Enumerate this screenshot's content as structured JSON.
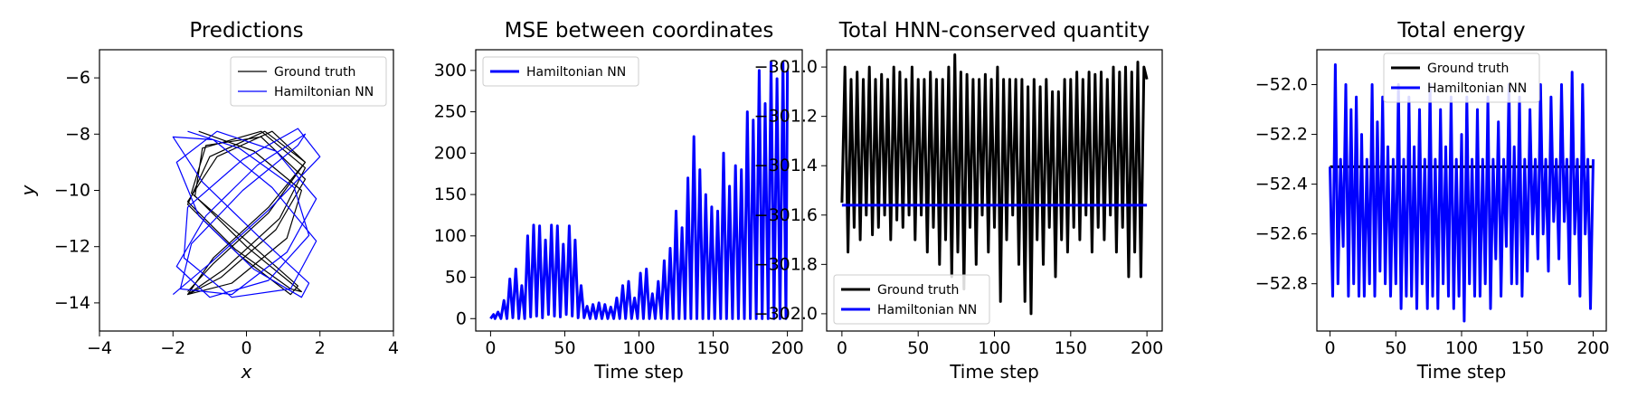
{
  "chart_data": [
    {
      "type": "line",
      "title": "Predictions",
      "xlabel": "x",
      "ylabel": "y",
      "xlim": [
        -4,
        4
      ],
      "ylim": [
        -15,
        -5
      ],
      "xticks": [
        -4,
        -2,
        0,
        2,
        4
      ],
      "yticks": [
        -14,
        -12,
        -10,
        -8,
        -6
      ],
      "xtick_labels": [
        "−4",
        "−2",
        "0",
        "2",
        "4"
      ],
      "ytick_labels": [
        "−14",
        "−12",
        "−10",
        "−8",
        "−6"
      ],
      "grid": false,
      "legend_placement": "top-right",
      "series": [
        {
          "name": "Ground truth",
          "color": "#000000",
          "x": [
            -1.3,
            0.2,
            1.5,
            1.1,
            -0.4,
            -1.6,
            -0.9,
            0.6,
            1.6,
            0.7,
            -0.8,
            -1.6,
            -0.3,
            1.2,
            1.5,
            0.0,
            -1.4,
            -1.2,
            0.4,
            1.6,
            0.9,
            -0.6,
            -1.6,
            -0.7,
            0.8,
            1.6,
            0.4,
            -1.1,
            -1.5,
            0.1,
            1.4,
            1.2,
            -0.2,
            -1.6,
            -1.0,
            0.5,
            1.6,
            0.6,
            -0.9,
            -1.6
          ],
          "y": [
            -7.9,
            -8.6,
            -10.0,
            -11.7,
            -13.3,
            -13.7,
            -12.4,
            -10.6,
            -9.0,
            -7.9,
            -8.8,
            -10.4,
            -12.1,
            -13.5,
            -13.6,
            -12.0,
            -10.2,
            -8.5,
            -7.9,
            -9.2,
            -11.0,
            -12.8,
            -13.7,
            -13.1,
            -11.4,
            -9.6,
            -8.1,
            -8.4,
            -10.1,
            -11.9,
            -13.4,
            -13.7,
            -12.3,
            -10.5,
            -8.8,
            -7.9,
            -9.0,
            -10.8,
            -12.6,
            -13.6
          ]
        },
        {
          "name": "Hamiltonian NN",
          "color": "#0000ff",
          "x": [
            -1.6,
            -0.2,
            1.3,
            1.7,
            0.6,
            -1.0,
            -1.9,
            -1.1,
            0.3,
            1.6,
            1.4,
            -0.1,
            -1.5,
            -1.8,
            -0.4,
            1.1,
            1.9,
            0.8,
            -0.8,
            -1.9,
            -1.3,
            0.2,
            1.5,
            1.7,
            0.3,
            -1.2,
            -2.0,
            -0.9,
            0.7,
            1.9,
            1.2,
            -0.4,
            -1.7,
            -1.6,
            -0.1,
            1.4,
            2.0,
            0.6,
            -1.0,
            -2.0
          ],
          "y": [
            -7.9,
            -8.5,
            -9.9,
            -11.6,
            -13.2,
            -13.8,
            -12.7,
            -10.9,
            -9.1,
            -8.0,
            -8.4,
            -10.0,
            -11.9,
            -13.5,
            -13.7,
            -12.2,
            -10.3,
            -8.6,
            -7.9,
            -9.0,
            -10.9,
            -12.8,
            -13.8,
            -13.3,
            -11.6,
            -9.7,
            -8.1,
            -8.2,
            -9.9,
            -11.8,
            -13.5,
            -13.8,
            -12.4,
            -10.6,
            -8.9,
            -7.8,
            -8.8,
            -10.7,
            -12.6,
            -13.7
          ]
        }
      ]
    },
    {
      "type": "line",
      "title": "MSE between coordinates",
      "xlabel": "Time step",
      "ylabel": "",
      "xlim": [
        -10,
        210
      ],
      "ylim": [
        -15,
        325
      ],
      "xticks": [
        0,
        50,
        100,
        150,
        200
      ],
      "yticks": [
        0,
        50,
        100,
        150,
        200,
        250,
        300
      ],
      "grid": false,
      "legend_placement": "top-left",
      "series": [
        {
          "name": "Hamiltonian NN",
          "color": "#0000ff",
          "x": [
            0,
            2,
            3,
            5,
            7,
            9,
            11,
            13,
            15,
            17,
            19,
            21,
            23,
            25,
            27,
            29,
            31,
            33,
            35,
            37,
            39,
            41,
            43,
            45,
            47,
            49,
            51,
            53,
            55,
            57,
            59,
            61,
            63,
            65,
            67,
            69,
            71,
            73,
            75,
            77,
            79,
            81,
            83,
            85,
            87,
            89,
            91,
            93,
            95,
            97,
            99,
            101,
            103,
            105,
            107,
            109,
            111,
            113,
            115,
            117,
            119,
            121,
            123,
            125,
            127,
            129,
            131,
            133,
            135,
            137,
            139,
            141,
            143,
            145,
            147,
            149,
            151,
            153,
            155,
            157,
            159,
            161,
            163,
            165,
            167,
            169,
            171,
            173,
            175,
            177,
            179,
            181,
            183,
            185,
            187,
            189,
            191,
            193,
            195,
            197,
            199,
            200
          ],
          "y": [
            0,
            5,
            0,
            8,
            0,
            22,
            0,
            48,
            1,
            60,
            0,
            40,
            0,
            100,
            2,
            113,
            3,
            112,
            1,
            95,
            5,
            113,
            3,
            112,
            2,
            90,
            5,
            112,
            3,
            95,
            1,
            40,
            1,
            15,
            0,
            17,
            0,
            19,
            0,
            17,
            0,
            14,
            0,
            25,
            0,
            40,
            0,
            45,
            0,
            25,
            0,
            55,
            0,
            60,
            0,
            30,
            0,
            45,
            0,
            70,
            0,
            85,
            0,
            130,
            0,
            110,
            0,
            170,
            0,
            220,
            0,
            180,
            0,
            150,
            0,
            135,
            0,
            130,
            0,
            200,
            0,
            160,
            0,
            185,
            0,
            180,
            0,
            250,
            0,
            240,
            0,
            300,
            0,
            260,
            0,
            310,
            0,
            290,
            0,
            310,
            0,
            300
          ]
        }
      ]
    },
    {
      "type": "line",
      "title": "Total HNN-conserved quantity",
      "xlabel": "Time step",
      "ylabel": "",
      "xlim": [
        -10,
        210
      ],
      "ylim": [
        -302.07,
        -300.93
      ],
      "xticks": [
        0,
        50,
        100,
        150,
        200
      ],
      "yticks": [
        -302.0,
        -301.8,
        -301.6,
        -301.4,
        -301.2,
        -301.0
      ],
      "ytick_labels": [
        "−302.0",
        "−301.8",
        "−301.6",
        "−301.4",
        "−301.2",
        "−301.0"
      ],
      "grid": false,
      "legend_placement": "bottom-left",
      "series": [
        {
          "name": "Ground truth",
          "color": "#000000",
          "x": [
            0,
            2,
            4,
            6,
            8,
            10,
            12,
            14,
            16,
            18,
            20,
            22,
            24,
            26,
            28,
            30,
            32,
            34,
            36,
            38,
            40,
            42,
            44,
            46,
            48,
            50,
            52,
            54,
            56,
            58,
            60,
            62,
            64,
            66,
            68,
            70,
            72,
            74,
            76,
            78,
            80,
            82,
            84,
            86,
            88,
            90,
            92,
            94,
            96,
            98,
            100,
            102,
            104,
            106,
            108,
            110,
            112,
            114,
            116,
            118,
            120,
            122,
            124,
            126,
            128,
            130,
            132,
            134,
            136,
            138,
            140,
            142,
            144,
            146,
            148,
            150,
            152,
            154,
            156,
            158,
            160,
            162,
            164,
            166,
            168,
            170,
            172,
            174,
            176,
            178,
            180,
            182,
            184,
            186,
            188,
            190,
            192,
            194,
            196,
            198,
            200
          ],
          "y": [
            -301.55,
            -301.0,
            -301.75,
            -301.05,
            -301.65,
            -301.02,
            -301.7,
            -301.05,
            -301.6,
            -301.0,
            -301.68,
            -301.05,
            -301.65,
            -301.03,
            -301.6,
            -301.05,
            -301.7,
            -301.0,
            -301.62,
            -301.02,
            -301.65,
            -301.05,
            -301.6,
            -301.0,
            -301.7,
            -301.05,
            -301.6,
            -301.05,
            -301.75,
            -301.02,
            -301.65,
            -301.05,
            -301.8,
            -301.05,
            -301.7,
            -301.0,
            -301.85,
            -300.95,
            -301.75,
            -301.02,
            -301.9,
            -301.03,
            -301.65,
            -301.05,
            -301.8,
            -301.05,
            -301.6,
            -301.03,
            -301.75,
            -301.05,
            -301.65,
            -301.0,
            -301.95,
            -301.05,
            -301.7,
            -301.05,
            -301.6,
            -301.05,
            -301.8,
            -301.05,
            -301.95,
            -301.08,
            -302.0,
            -301.05,
            -301.7,
            -301.08,
            -301.8,
            -301.05,
            -301.65,
            -301.1,
            -301.85,
            -301.1,
            -301.7,
            -301.05,
            -301.75,
            -301.05,
            -301.65,
            -301.02,
            -301.7,
            -301.05,
            -301.6,
            -301.02,
            -301.75,
            -301.03,
            -301.65,
            -301.02,
            -301.7,
            -301.05,
            -301.6,
            -301.0,
            -301.75,
            -301.02,
            -301.65,
            -301.0,
            -301.85,
            -301.02,
            -301.75,
            -300.98,
            -301.85,
            -301.0,
            -301.05
          ]
        },
        {
          "name": "Hamiltonian NN",
          "color": "#0000ff",
          "x": [
            0,
            200
          ],
          "y": [
            -301.56,
            -301.56
          ]
        }
      ]
    },
    {
      "type": "line",
      "title": "Total energy",
      "xlabel": "Time step",
      "ylabel": "",
      "xlim": [
        -10,
        210
      ],
      "ylim": [
        -52.99,
        -51.86
      ],
      "xticks": [
        0,
        50,
        100,
        150,
        200
      ],
      "yticks": [
        -52.8,
        -52.6,
        -52.4,
        -52.2,
        -52.0
      ],
      "ytick_labels": [
        "−52.8",
        "−52.6",
        "−52.4",
        "−52.2",
        "−52.0"
      ],
      "grid": false,
      "legend_placement": "top-center",
      "series": [
        {
          "name": "Ground truth",
          "color": "#000000",
          "x": [
            0,
            200
          ],
          "y": [
            -52.33,
            -52.33
          ]
        },
        {
          "name": "Hamiltonian NN",
          "color": "#0000ff",
          "x": [
            0,
            2,
            4,
            6,
            8,
            10,
            12,
            14,
            16,
            18,
            20,
            22,
            24,
            26,
            28,
            30,
            32,
            34,
            36,
            38,
            40,
            42,
            44,
            46,
            48,
            50,
            52,
            54,
            56,
            58,
            60,
            62,
            64,
            66,
            68,
            70,
            72,
            74,
            76,
            78,
            80,
            82,
            84,
            86,
            88,
            90,
            92,
            94,
            96,
            98,
            100,
            102,
            104,
            106,
            108,
            110,
            112,
            114,
            116,
            118,
            120,
            122,
            124,
            126,
            128,
            130,
            132,
            134,
            136,
            138,
            140,
            142,
            144,
            146,
            148,
            150,
            152,
            154,
            156,
            158,
            160,
            162,
            164,
            166,
            168,
            170,
            172,
            174,
            176,
            178,
            180,
            182,
            184,
            186,
            188,
            190,
            192,
            194,
            196,
            198,
            200
          ],
          "y": [
            -52.33,
            -52.85,
            -51.92,
            -52.8,
            -52.3,
            -52.65,
            -52.0,
            -52.85,
            -52.1,
            -52.8,
            -52.05,
            -52.85,
            -52.2,
            -52.85,
            -52.3,
            -52.8,
            -52.0,
            -52.85,
            -52.15,
            -52.75,
            -52.05,
            -52.8,
            -52.25,
            -52.85,
            -52.3,
            -52.8,
            -52.0,
            -52.9,
            -52.3,
            -52.85,
            -52.05,
            -52.85,
            -52.25,
            -52.9,
            -52.1,
            -52.8,
            -52.3,
            -52.9,
            -52.0,
            -52.85,
            -52.3,
            -52.9,
            -52.1,
            -52.8,
            -52.25,
            -52.85,
            -52.05,
            -52.9,
            -52.3,
            -52.85,
            -52.2,
            -52.95,
            -52.05,
            -52.8,
            -52.3,
            -52.85,
            -52.1,
            -52.85,
            -52.3,
            -52.8,
            -52.05,
            -52.9,
            -52.3,
            -52.7,
            -52.15,
            -52.85,
            -52.3,
            -52.65,
            -52.0,
            -52.8,
            -52.25,
            -52.8,
            -52.05,
            -52.85,
            -52.3,
            -52.75,
            -52.1,
            -52.6,
            -52.3,
            -52.7,
            -52.0,
            -52.6,
            -52.3,
            -52.75,
            -52.05,
            -52.55,
            -52.3,
            -52.7,
            -52.0,
            -52.55,
            -52.3,
            -52.8,
            -51.95,
            -52.6,
            -52.3,
            -52.85,
            -52.0,
            -52.6,
            -52.3,
            -52.9,
            -52.3
          ]
        }
      ]
    }
  ]
}
